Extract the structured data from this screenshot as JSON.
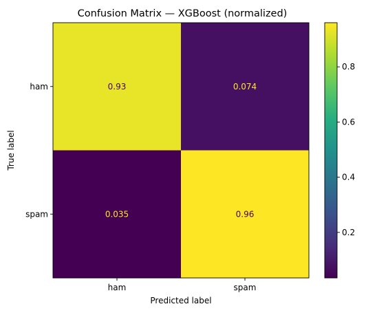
{
  "chart_data": {
    "type": "heatmap",
    "title": "Confusion Matrix — XGBoost (normalized)",
    "xlabel": "Predicted label",
    "ylabel": "True label",
    "x_categories": [
      "ham",
      "spam"
    ],
    "y_categories": [
      "ham",
      "spam"
    ],
    "values": [
      [
        0.93,
        0.074
      ],
      [
        0.035,
        0.96
      ]
    ],
    "cell_labels": [
      [
        "0.93",
        "0.074"
      ],
      [
        "0.035",
        "0.96"
      ]
    ],
    "colormap": "viridis",
    "colorbar": {
      "range": [
        0.035,
        0.96
      ],
      "ticks": [
        0.2,
        0.4,
        0.6,
        0.8
      ],
      "tick_labels": [
        "0.2",
        "0.4",
        "0.6",
        "0.8"
      ]
    },
    "label_colors": {
      "on_dark": "#fde725",
      "on_light": "#440154"
    }
  }
}
